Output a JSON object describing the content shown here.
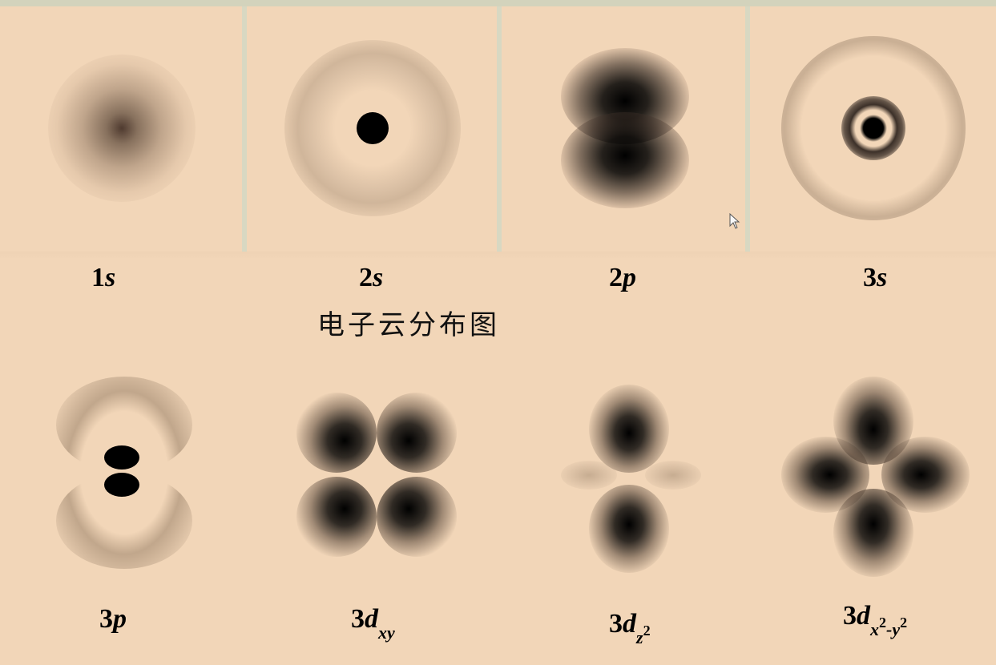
{
  "title": "电子云分布图",
  "colors": {
    "background": "#f2d6b8",
    "cloud": "#000000",
    "divider": "#d8d8c2"
  },
  "orbitals": [
    {
      "num": "1",
      "letter": "s",
      "sub": "",
      "sup1": "",
      "mid": "",
      "sup2": ""
    },
    {
      "num": "2",
      "letter": "s",
      "sub": "",
      "sup1": "",
      "mid": "",
      "sup2": ""
    },
    {
      "num": "2",
      "letter": "p",
      "sub": "",
      "sup1": "",
      "mid": "",
      "sup2": ""
    },
    {
      "num": "3",
      "letter": "s",
      "sub": "",
      "sup1": "",
      "mid": "",
      "sup2": ""
    },
    {
      "num": "3",
      "letter": "p",
      "sub": "",
      "sup1": "",
      "mid": "",
      "sup2": ""
    },
    {
      "num": "3",
      "letter": "d",
      "sub": "xy",
      "sup1": "",
      "mid": "",
      "sup2": ""
    },
    {
      "num": "3",
      "letter": "d",
      "sub": "z",
      "sup1": "2",
      "mid": "",
      "sup2": ""
    },
    {
      "num": "3",
      "letter": "d",
      "sub": "x",
      "sup1": "2",
      "mid": "-y",
      "sup2": "2"
    }
  ],
  "icons": {
    "cursor": "mouse-pointer-icon"
  }
}
